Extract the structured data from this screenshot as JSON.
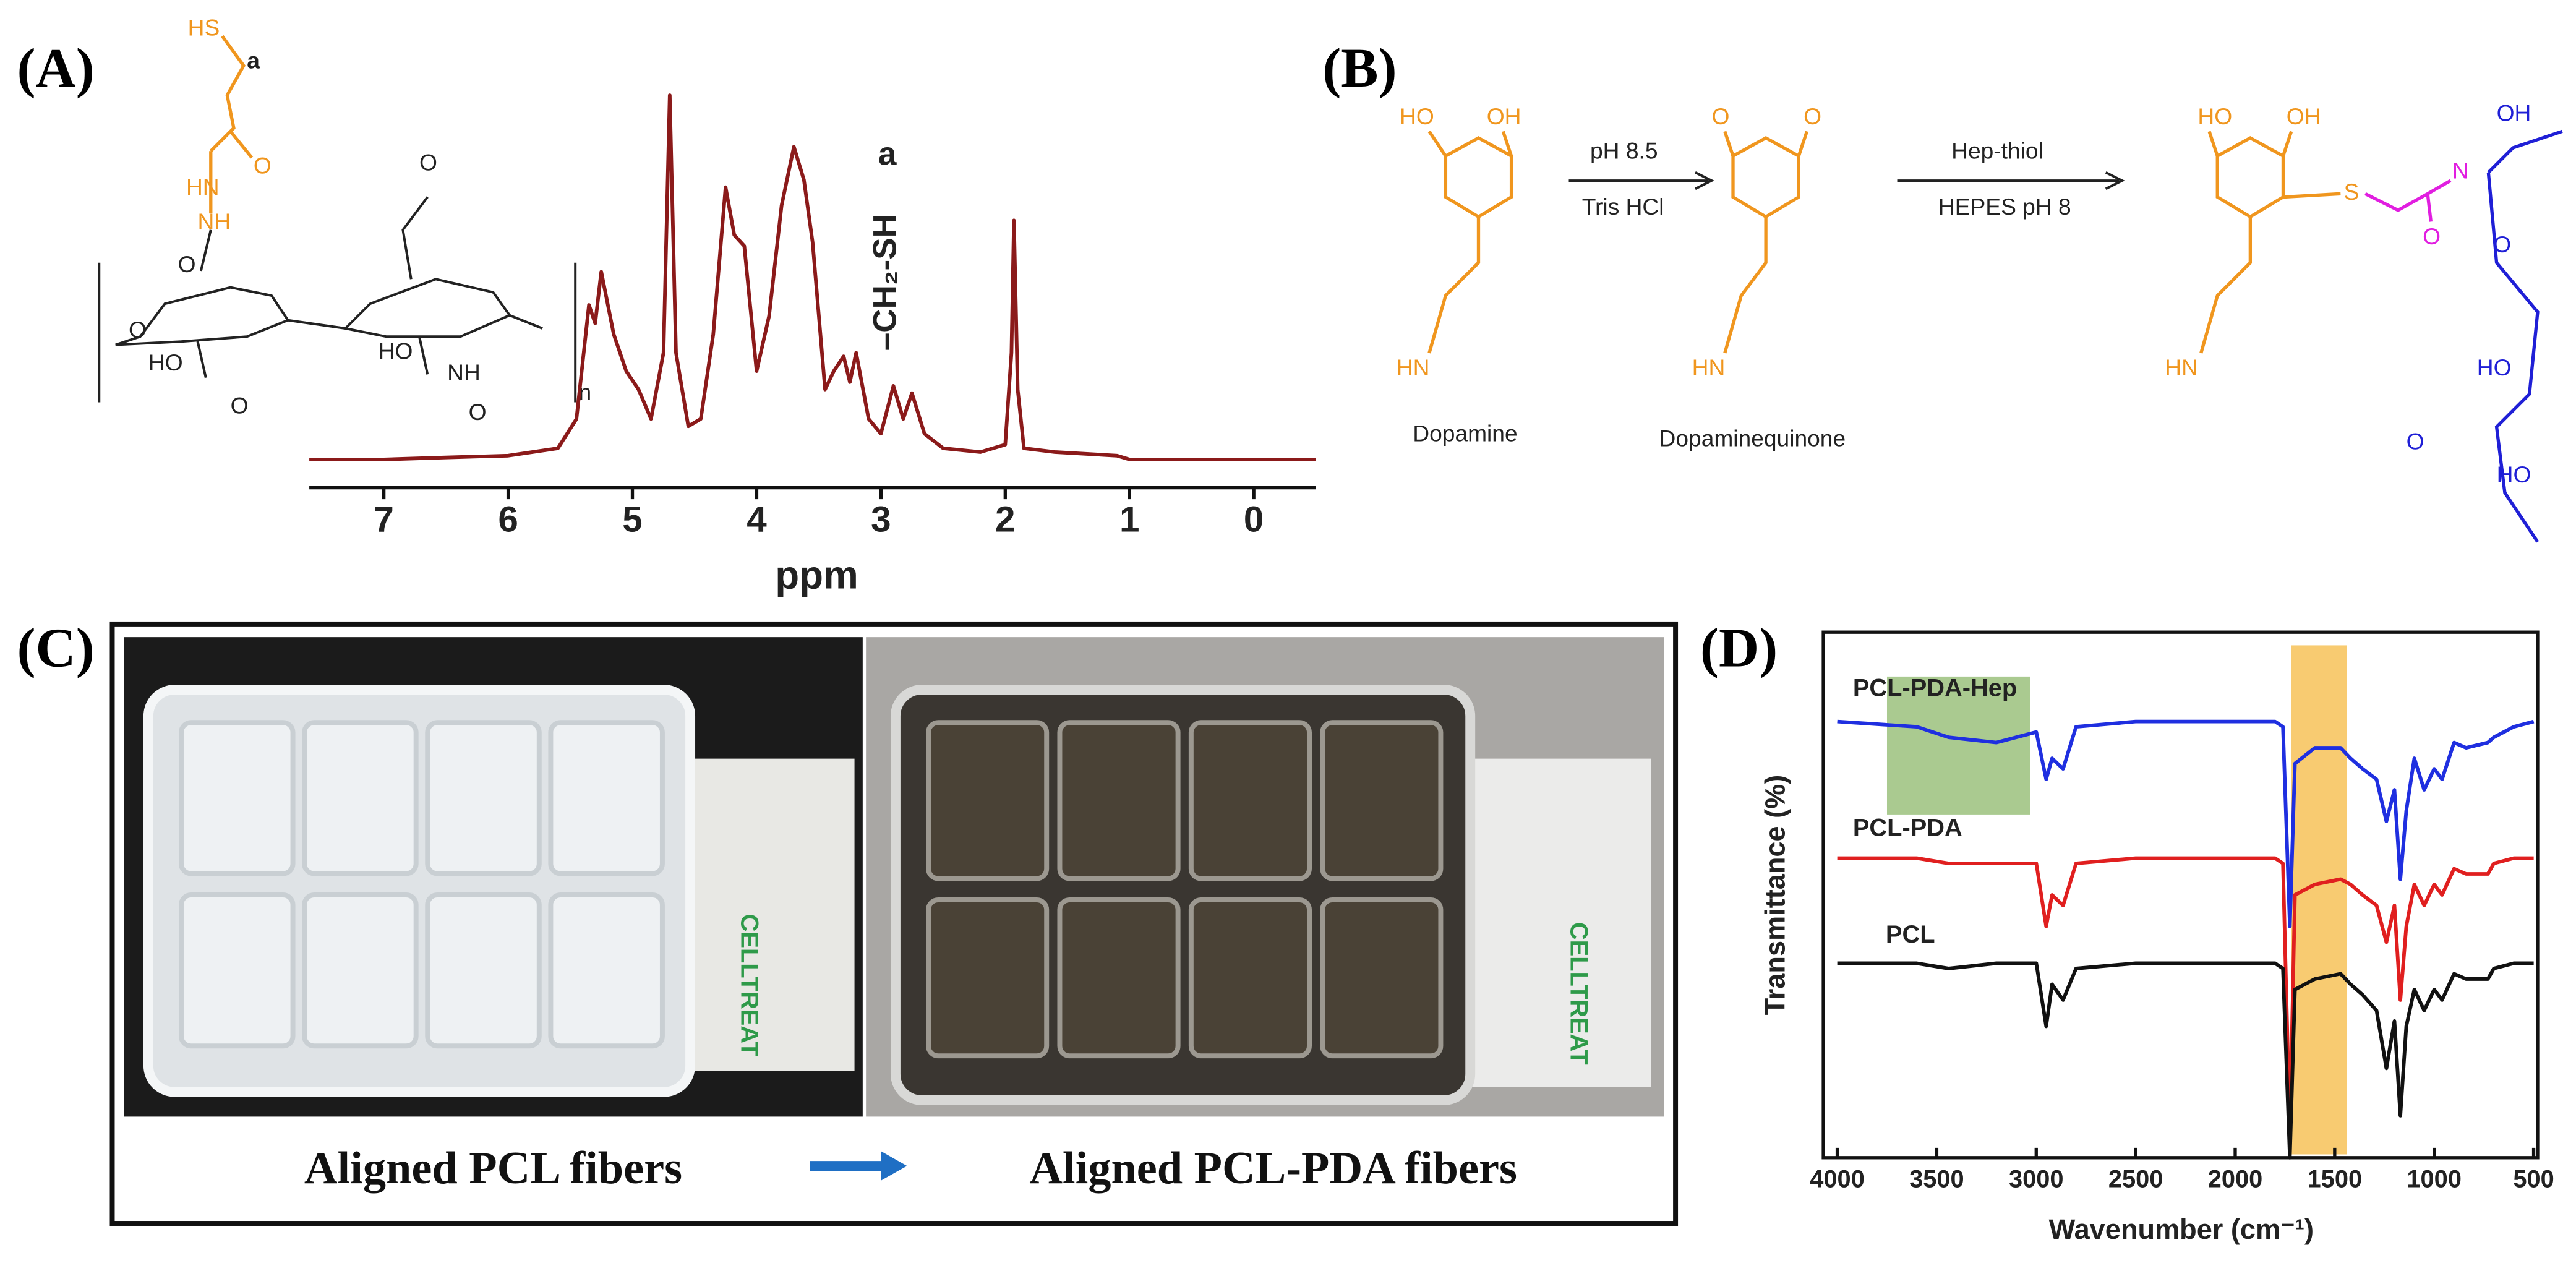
{
  "panel_labels": [
    "(A)",
    "(B)",
    "(C)",
    "(D)"
  ],
  "panel_a": {
    "structure_labels": [
      "HS",
      "a",
      "O",
      "HN",
      "NH",
      "O",
      "O",
      "HO",
      "O",
      "O",
      "HO",
      "NH",
      "O",
      "n"
    ]
  },
  "panel_b": {
    "labels": [
      "HO",
      "OH",
      "HN",
      "Dopamine",
      "pH 8.5",
      "Tris HCl",
      "O",
      "O",
      "HN",
      "Dopaminequinone",
      "Hep-thiol",
      "HEPES pH 8",
      "HO",
      "OH",
      "S",
      "HN",
      "O",
      "N",
      "OH",
      "O",
      "HO",
      "O",
      "HO"
    ]
  },
  "panel_c": {
    "captions": [
      "Aligned PCL fibers",
      "Aligned PCL-PDA fibers"
    ],
    "brand": [
      "CELLTREAT",
      "CELLTREAT"
    ]
  },
  "chart_data": [
    {
      "type": "line",
      "x_label": "ppm",
      "annotations": [
        "a",
        "–CH₂-SH"
      ],
      "color": "#8b1a1a",
      "x": [
        7.6,
        7.0,
        6.5,
        6.0,
        5.6,
        5.45,
        5.35,
        5.3,
        5.25,
        5.15,
        5.05,
        4.95,
        4.85,
        4.75,
        4.7,
        4.65,
        4.55,
        4.45,
        4.35,
        4.25,
        4.18,
        4.1,
        4.0,
        3.9,
        3.8,
        3.7,
        3.62,
        3.55,
        3.45,
        3.38,
        3.3,
        3.25,
        3.2,
        3.1,
        3.0,
        2.9,
        2.82,
        2.75,
        2.65,
        2.5,
        2.2,
        2.0,
        1.95,
        1.93,
        1.9,
        1.85,
        1.6,
        1.1,
        1.0,
        0.5,
        0,
        -0.5
      ],
      "values": [
        1,
        1,
        1.5,
        2,
        4,
        12,
        43,
        38,
        52,
        35,
        25,
        20,
        12,
        30,
        100,
        30,
        10,
        12,
        35,
        75,
        62,
        59,
        25,
        40,
        70,
        86,
        77,
        60,
        20,
        25,
        29,
        22,
        30,
        12,
        8,
        21,
        12,
        19,
        8,
        4,
        3,
        5,
        30,
        66,
        20,
        4,
        3,
        2,
        1,
        1,
        1,
        1
      ],
      "xlim": [
        7.6,
        -0.5
      ],
      "xticks": [
        7,
        6,
        5,
        4,
        3,
        2,
        1,
        0
      ],
      "ylim": [
        0,
        100
      ]
    },
    {
      "type": "line",
      "x_label": "Wavenumber (cm⁻¹)",
      "y_label": "Transmittance (%)",
      "x": [
        4000,
        3600,
        3440,
        3200,
        3000,
        2950,
        2920,
        2865,
        2800,
        2500,
        2000,
        1800,
        1760,
        1725,
        1700,
        1600,
        1470,
        1420,
        1360,
        1290,
        1240,
        1200,
        1170,
        1140,
        1100,
        1050,
        1000,
        960,
        900,
        840,
        730,
        700,
        600,
        500
      ],
      "series": [
        {
          "name": "PCL-PDA-Hep",
          "color": "#1f2fe0",
          "values": [
            83,
            82,
            80,
            79,
            81,
            72,
            76,
            74,
            82,
            83,
            83,
            83,
            82,
            44,
            75,
            78,
            78,
            76,
            74,
            72,
            64,
            70,
            53,
            66,
            76,
            70,
            74,
            72,
            79,
            78,
            79,
            80,
            82,
            83
          ]
        },
        {
          "name": "PCL-PDA",
          "color": "#e01f1f",
          "values": [
            57,
            57,
            56,
            56,
            56,
            44,
            50,
            48,
            56,
            57,
            57,
            57,
            56,
            5,
            50,
            52,
            53,
            52,
            50,
            48,
            41,
            48,
            30,
            44,
            52,
            48,
            52,
            50,
            55,
            54,
            54,
            56,
            57,
            57
          ]
        },
        {
          "name": "PCL",
          "color": "#111111",
          "values": [
            37,
            37,
            36,
            37,
            37,
            25,
            33,
            30,
            36,
            37,
            37,
            37,
            36,
            0,
            32,
            34,
            35,
            33,
            31,
            28,
            17,
            26,
            8,
            25,
            32,
            28,
            32,
            30,
            35,
            34,
            34,
            36,
            37,
            37
          ]
        }
      ],
      "highlights": [
        {
          "x": [
            3750,
            3030
          ],
          "color": "#8db86b"
        },
        {
          "x": [
            1720,
            1440
          ],
          "color": "#f5b942"
        }
      ],
      "xlim": [
        4070,
        480
      ],
      "xticks": [
        4000,
        3500,
        3000,
        2500,
        2000,
        1500,
        1000,
        500
      ],
      "ylim": [
        0,
        100
      ]
    }
  ]
}
